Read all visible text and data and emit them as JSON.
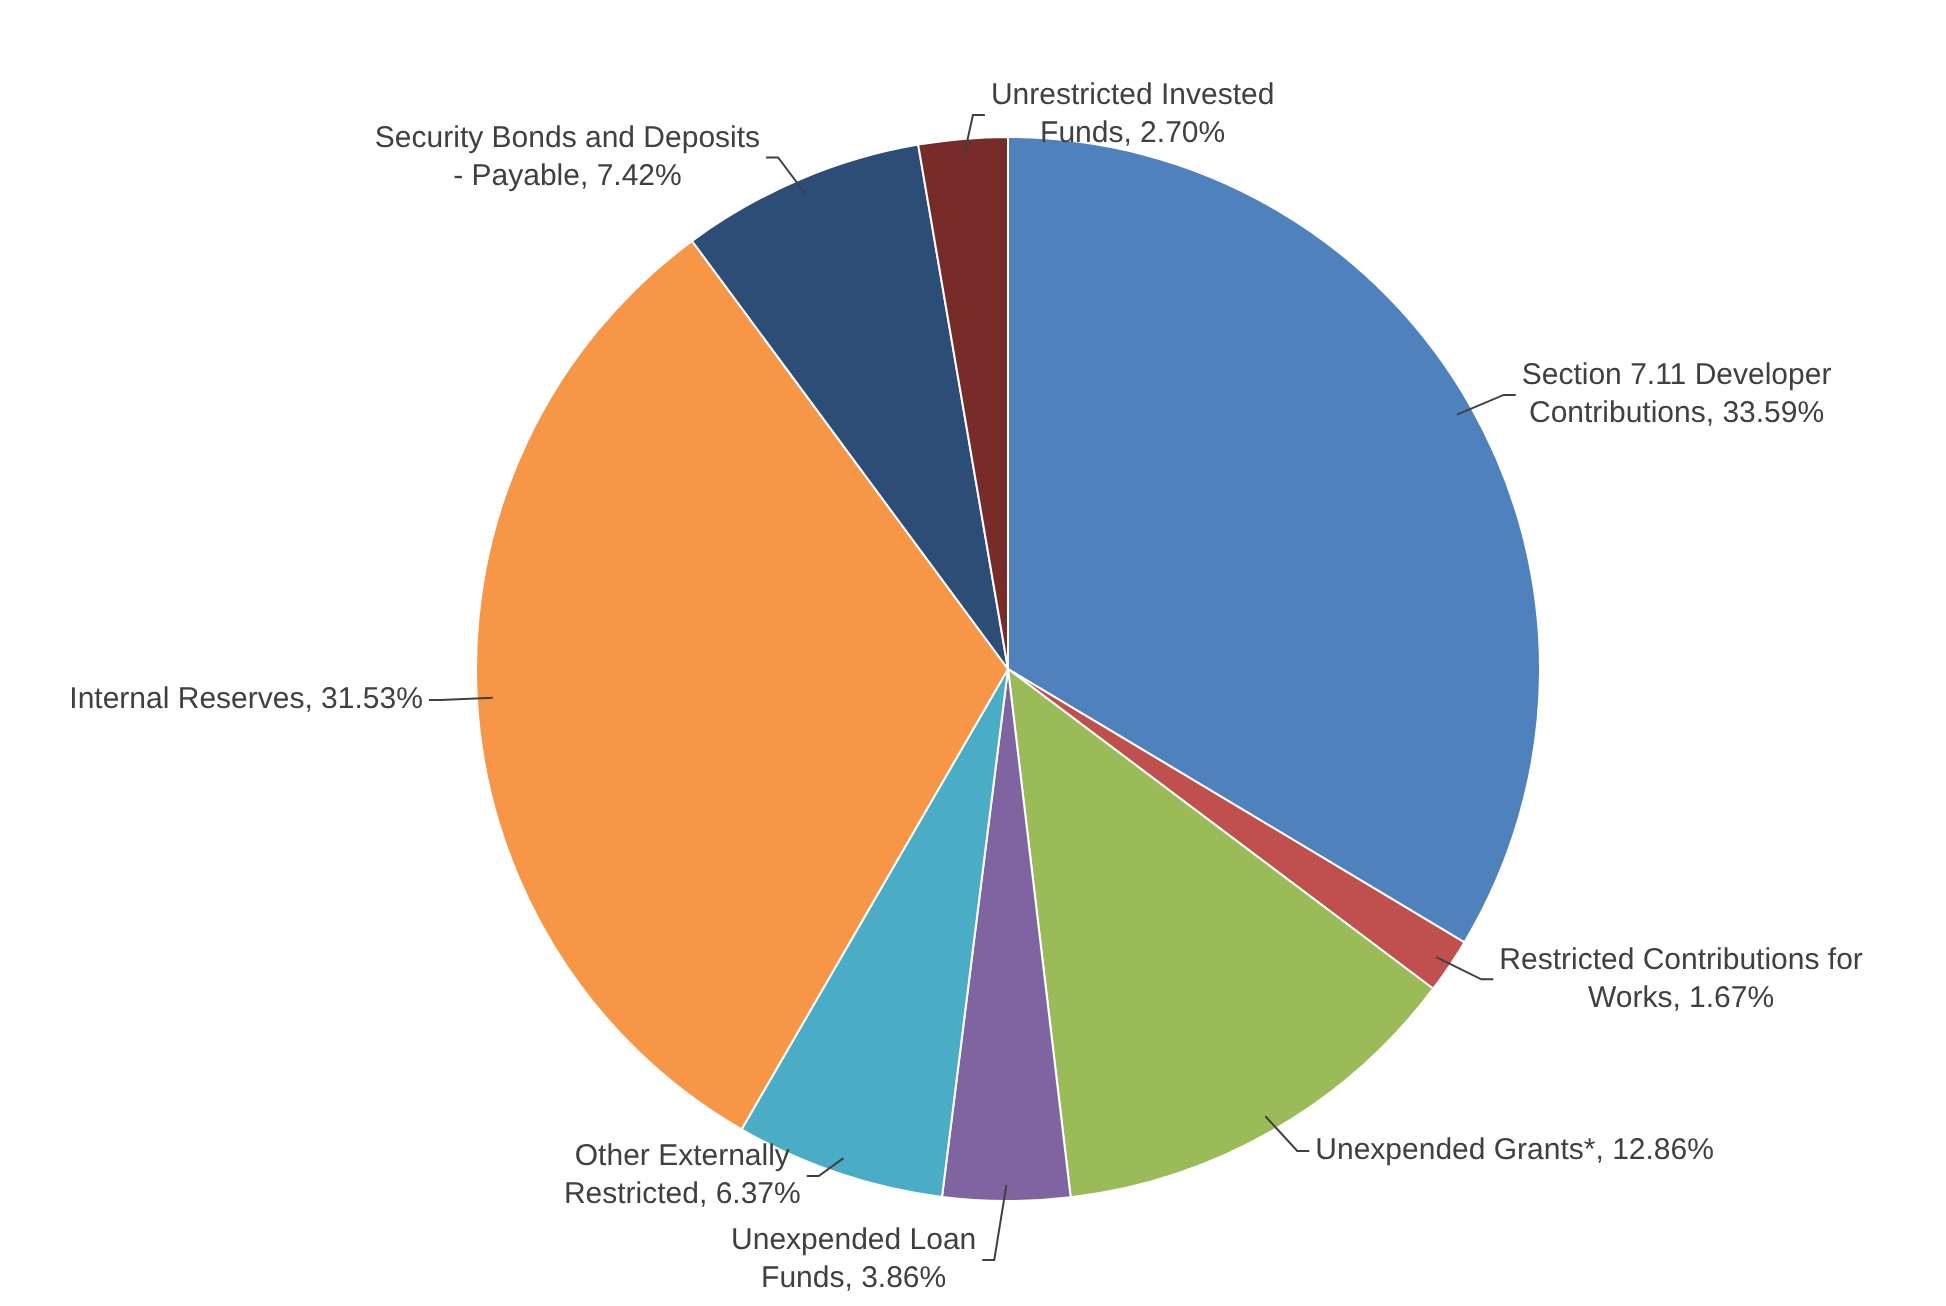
{
  "chart_data": {
    "type": "pie",
    "categories": [
      "Section 7.11 Developer Contributions",
      "Restricted Contributions for Works",
      "Unexpended Grants*",
      "Unexpended Loan Funds",
      "Other Externally Restricted",
      "Internal Reserves",
      "Security Bonds and Deposits - Payable",
      "Unrestricted Invested Funds"
    ],
    "values": [
      33.59,
      1.67,
      12.86,
      3.86,
      6.37,
      31.53,
      7.42,
      2.7
    ],
    "value_labels": [
      "33.59%",
      "1.67%",
      "12.86%",
      "3.86%",
      "6.37%",
      "31.53%",
      "7.42%",
      "2.70%"
    ],
    "colors": [
      "#4f81bd",
      "#c0504d",
      "#9bbb59",
      "#8064a2",
      "#4bacc6",
      "#f79646",
      "#2c4d75",
      "#772c2a"
    ],
    "data_labels": true,
    "legend": false
  }
}
